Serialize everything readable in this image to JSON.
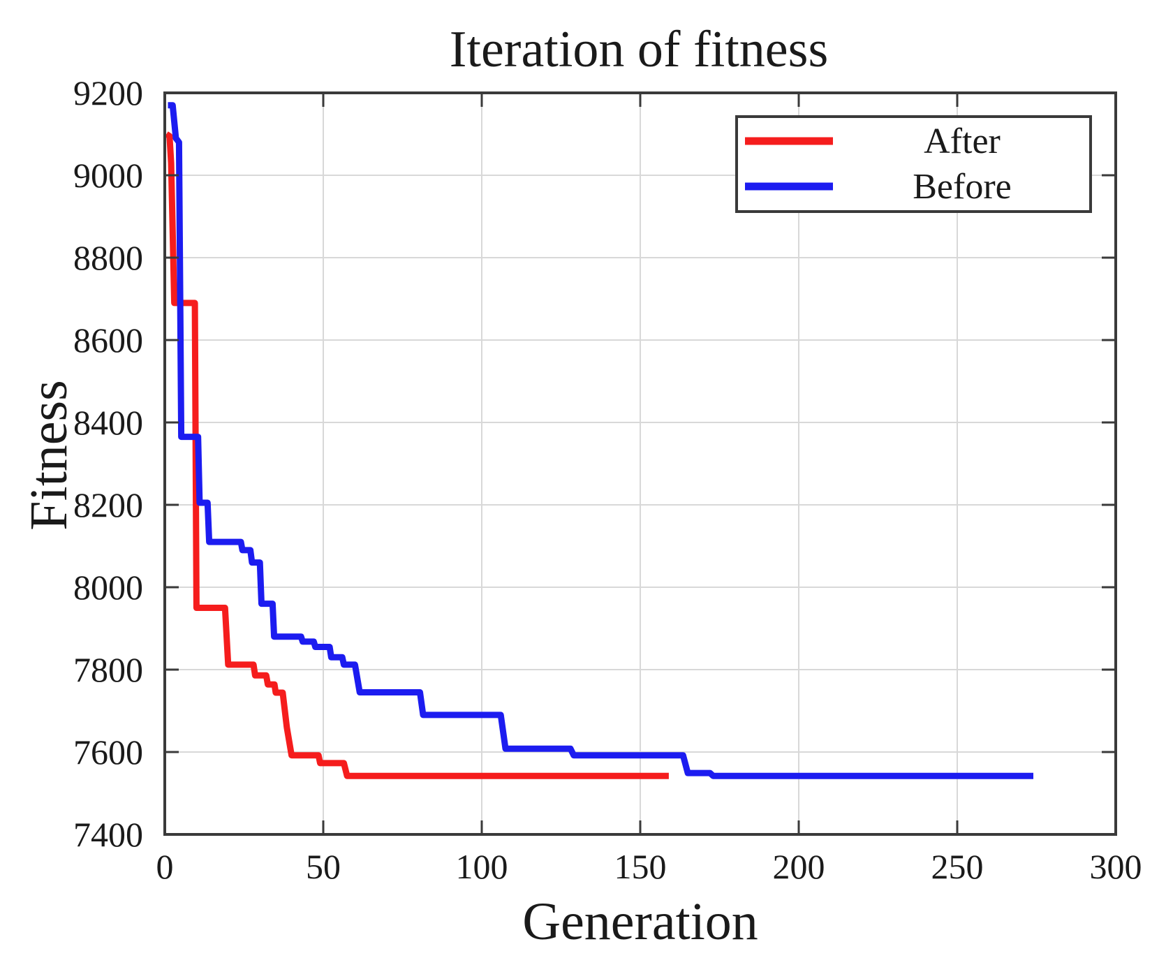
{
  "title": "Iteration of fitness",
  "axes": {
    "xlabel": "Generation",
    "ylabel": "Fitness",
    "x_ticks": [
      0,
      50,
      100,
      150,
      200,
      250,
      300
    ],
    "y_ticks": [
      7400,
      7600,
      7800,
      8000,
      8200,
      8400,
      8600,
      8800,
      9000,
      9200
    ]
  },
  "legend": {
    "entries": [
      {
        "label": "After",
        "color": "#f51d1d"
      },
      {
        "label": "Before",
        "color": "#1c1cf0"
      }
    ]
  },
  "colors": {
    "after_line": "#f51d1d",
    "before_line": "#1c1cf0",
    "grid": "#d8d8d8",
    "frame": "#3a3a3a",
    "background": "#ffffff"
  },
  "chart_data": {
    "type": "line",
    "title": "Iteration of fitness",
    "xlabel": "Generation",
    "ylabel": "Fitness",
    "xlim": [
      0,
      300
    ],
    "ylim": [
      7400,
      9200
    ],
    "x_ticks": [
      0,
      50,
      100,
      150,
      200,
      250,
      300
    ],
    "y_ticks": [
      7400,
      7600,
      7800,
      8000,
      8200,
      8400,
      8600,
      8800,
      9000,
      9200
    ],
    "grid": true,
    "legend_position": "upper right",
    "series": [
      {
        "name": "After",
        "color": "#f51d1d",
        "points": [
          [
            0.5,
            9100
          ],
          [
            1.5,
            9095
          ],
          [
            2,
            9030
          ],
          [
            3,
            8690
          ],
          [
            9.5,
            8690
          ],
          [
            10,
            7950
          ],
          [
            19,
            7950
          ],
          [
            20,
            7812
          ],
          [
            28,
            7812
          ],
          [
            28.5,
            7786
          ],
          [
            32,
            7786
          ],
          [
            32.5,
            7764
          ],
          [
            34.6,
            7764
          ],
          [
            35,
            7744
          ],
          [
            37.2,
            7744
          ],
          [
            38.5,
            7660
          ],
          [
            40,
            7592
          ],
          [
            48.5,
            7592
          ],
          [
            49,
            7573
          ],
          [
            56.5,
            7573
          ],
          [
            57.5,
            7542
          ],
          [
            159,
            7542
          ]
        ]
      },
      {
        "name": "Before",
        "color": "#1c1cf0",
        "points": [
          [
            1,
            9170
          ],
          [
            2.5,
            9170
          ],
          [
            3.5,
            9090
          ],
          [
            4.5,
            9080
          ],
          [
            5.2,
            8365
          ],
          [
            10.5,
            8365
          ],
          [
            11,
            8205
          ],
          [
            13.5,
            8205
          ],
          [
            14,
            8110
          ],
          [
            24,
            8110
          ],
          [
            24.5,
            8090
          ],
          [
            27,
            8090
          ],
          [
            27.5,
            8060
          ],
          [
            30,
            8060
          ],
          [
            30.5,
            7960
          ],
          [
            34,
            7960
          ],
          [
            34.5,
            7880
          ],
          [
            43,
            7880
          ],
          [
            43.5,
            7868
          ],
          [
            47,
            7868
          ],
          [
            47.5,
            7855
          ],
          [
            52,
            7855
          ],
          [
            52.5,
            7830
          ],
          [
            56,
            7830
          ],
          [
            56.5,
            7812
          ],
          [
            60,
            7812
          ],
          [
            61.5,
            7745
          ],
          [
            80.5,
            7745
          ],
          [
            81.5,
            7690
          ],
          [
            106,
            7690
          ],
          [
            107.5,
            7608
          ],
          [
            128,
            7608
          ],
          [
            129,
            7592
          ],
          [
            163.5,
            7592
          ],
          [
            165,
            7549
          ],
          [
            172,
            7549
          ],
          [
            173,
            7542
          ],
          [
            274,
            7542
          ]
        ]
      }
    ]
  }
}
